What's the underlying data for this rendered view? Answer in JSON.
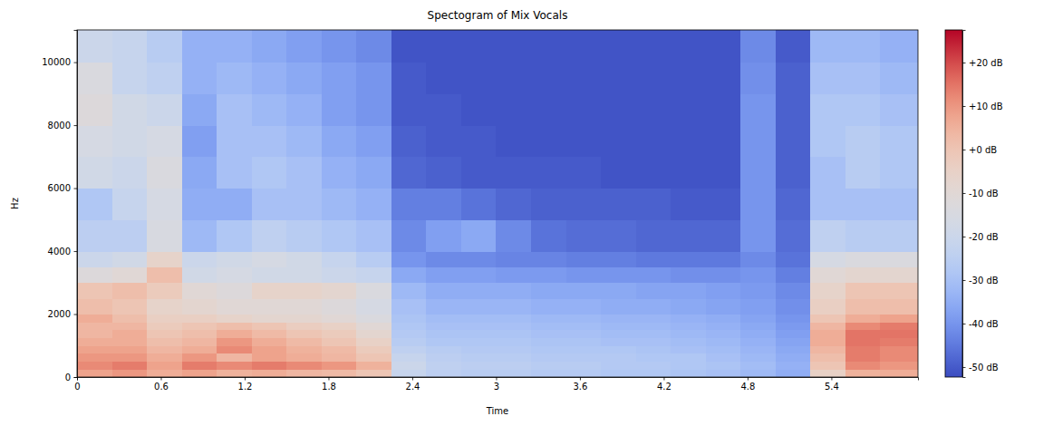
{
  "chart_data": {
    "type": "heatmap",
    "title": "Spectogram of Mix Vocals",
    "x_label": "Time",
    "y_label": "Hz",
    "xlim": [
      0,
      6.02
    ],
    "ylim": [
      0,
      11025
    ],
    "xticks": [
      0,
      0.6,
      1.2,
      1.8,
      2.4,
      3,
      3.6,
      4.2,
      4.8,
      5.4
    ],
    "yticks": [
      0,
      2000,
      4000,
      6000,
      8000,
      10000
    ],
    "x_edges": [
      0,
      0.25,
      0.5,
      0.75,
      1.0,
      1.25,
      1.5,
      1.75,
      2.0,
      2.25,
      2.5,
      2.75,
      3.0,
      3.25,
      3.5,
      3.75,
      4.0,
      4.25,
      4.5,
      4.75,
      5.0,
      5.25,
      5.5,
      5.75,
      6.02
    ],
    "y_edges": [
      0,
      250,
      500,
      750,
      1000,
      1250,
      1500,
      1750,
      2000,
      2500,
      3000,
      3500,
      4000,
      5000,
      6000,
      7000,
      8000,
      9000,
      10000,
      11025
    ],
    "z": [
      [
        8,
        10,
        6,
        8,
        5,
        6,
        4,
        3,
        0,
        -22,
        -25,
        -26,
        -26,
        -27,
        -27,
        -28,
        -28,
        -29,
        -30,
        -32,
        -35,
        -5,
        5,
        6
      ],
      [
        12,
        14,
        8,
        14,
        12,
        14,
        12,
        10,
        5,
        -20,
        -24,
        -25,
        -25,
        -26,
        -26,
        -27,
        -27,
        -28,
        -29,
        -31,
        -34,
        0,
        12,
        10
      ],
      [
        10,
        10,
        6,
        10,
        4,
        8,
        6,
        4,
        0,
        -22,
        -25,
        -26,
        -26,
        -27,
        -27,
        -27,
        -28,
        -28,
        -30,
        -32,
        -35,
        2,
        14,
        12
      ],
      [
        8,
        8,
        4,
        6,
        12,
        8,
        5,
        3,
        -2,
        -24,
        -26,
        -27,
        -27,
        -28,
        -28,
        -28,
        -29,
        -30,
        -31,
        -33,
        -36,
        4,
        14,
        12
      ],
      [
        6,
        6,
        2,
        4,
        10,
        6,
        3,
        0,
        -5,
        -26,
        -28,
        -28,
        -28,
        -29,
        -29,
        -30,
        -30,
        -31,
        -32,
        -34,
        -37,
        6,
        15,
        14
      ],
      [
        4,
        6,
        0,
        2,
        6,
        3,
        0,
        -2,
        -8,
        -27,
        -29,
        -29,
        -29,
        -30,
        -30,
        -31,
        -31,
        -32,
        -33,
        -35,
        -38,
        6,
        15,
        15
      ],
      [
        4,
        4,
        -2,
        0,
        2,
        0,
        -3,
        -5,
        -10,
        -28,
        -30,
        -30,
        -30,
        -31,
        -31,
        -32,
        -32,
        -33,
        -34,
        -36,
        -39,
        4,
        12,
        14
      ],
      [
        6,
        2,
        -4,
        -4,
        -6,
        -8,
        -8,
        -10,
        -14,
        -29,
        -31,
        -31,
        -31,
        -32,
        -32,
        -33,
        -33,
        -34,
        -35,
        -37,
        -40,
        0,
        6,
        8
      ],
      [
        2,
        0,
        -6,
        -8,
        -10,
        -10,
        -10,
        -12,
        -16,
        -30,
        -33,
        -33,
        -33,
        -34,
        -34,
        -35,
        -35,
        -36,
        -37,
        -38,
        -41,
        -4,
        2,
        2
      ],
      [
        0,
        2,
        -2,
        -10,
        -12,
        -6,
        -6,
        -8,
        -14,
        -32,
        -35,
        -35,
        -35,
        -36,
        -36,
        -36,
        -37,
        -37,
        -38,
        -39,
        -42,
        -6,
        0,
        0
      ],
      [
        -12,
        -10,
        2,
        -18,
        -16,
        -18,
        -18,
        -20,
        -22,
        -36,
        -38,
        -38,
        -39,
        -39,
        -40,
        -40,
        -40,
        -41,
        -41,
        -40,
        -44,
        -10,
        -8,
        -8
      ],
      [
        -20,
        -18,
        -6,
        -20,
        -18,
        -16,
        -18,
        -22,
        -26,
        -40,
        -42,
        -42,
        -43,
        -43,
        -44,
        -44,
        -45,
        -45,
        -45,
        -42,
        -46,
        -16,
        -14,
        -14
      ],
      [
        -25,
        -25,
        -15,
        -32,
        -28,
        -24,
        -26,
        -28,
        -30,
        -42,
        -38,
        -36,
        -42,
        -46,
        -47,
        -47,
        -48,
        -48,
        -48,
        -40,
        -47,
        -24,
        -26,
        -26
      ],
      [
        -28,
        -22,
        -16,
        -35,
        -35,
        -30,
        -30,
        -32,
        -34,
        -44,
        -44,
        -46,
        -48,
        -49,
        -49,
        -49,
        -49,
        -50,
        -50,
        -40,
        -48,
        -30,
        -30,
        -30
      ],
      [
        -18,
        -20,
        -14,
        -36,
        -30,
        -28,
        -30,
        -34,
        -36,
        -48,
        -49,
        -50,
        -50,
        -50,
        -50,
        -51,
        -51,
        -51,
        -51,
        -40,
        -49,
        -30,
        -26,
        -28
      ],
      [
        -16,
        -18,
        -16,
        -38,
        -30,
        -30,
        -32,
        -36,
        -38,
        -49,
        -50,
        -50,
        -51,
        -51,
        -51,
        -51,
        -51,
        -51,
        -51,
        -40,
        -49,
        -28,
        -26,
        -28
      ],
      [
        -12,
        -18,
        -20,
        -36,
        -30,
        -32,
        -34,
        -38,
        -40,
        -50,
        -50,
        -51,
        -51,
        -51,
        -51,
        -51,
        -51,
        -51,
        -51,
        -40,
        -49,
        -28,
        -28,
        -30
      ],
      [
        -14,
        -22,
        -24,
        -34,
        -32,
        -34,
        -36,
        -38,
        -40,
        -50,
        -51,
        -51,
        -51,
        -51,
        -51,
        -51,
        -51,
        -51,
        -51,
        -41,
        -49,
        -30,
        -30,
        -32
      ],
      [
        -20,
        -22,
        -26,
        -34,
        -34,
        -36,
        -38,
        -40,
        -42,
        -51,
        -51,
        -51,
        -51,
        -51,
        -51,
        -51,
        -51,
        -51,
        -51,
        -42,
        -50,
        -32,
        -32,
        -34
      ]
    ],
    "colorbar": {
      "range": [
        -52.3,
        27.5
      ],
      "ticks": [
        {
          "value": 20,
          "label": "+20 dB"
        },
        {
          "value": 10,
          "label": "+10 dB"
        },
        {
          "value": 0,
          "label": "+0 dB"
        },
        {
          "value": -10,
          "label": "-10 dB"
        },
        {
          "value": -20,
          "label": "-20 dB"
        },
        {
          "value": -30,
          "label": "-30 dB"
        },
        {
          "value": -40,
          "label": "-40 dB"
        },
        {
          "value": -50,
          "label": "-50 dB"
        }
      ]
    }
  }
}
